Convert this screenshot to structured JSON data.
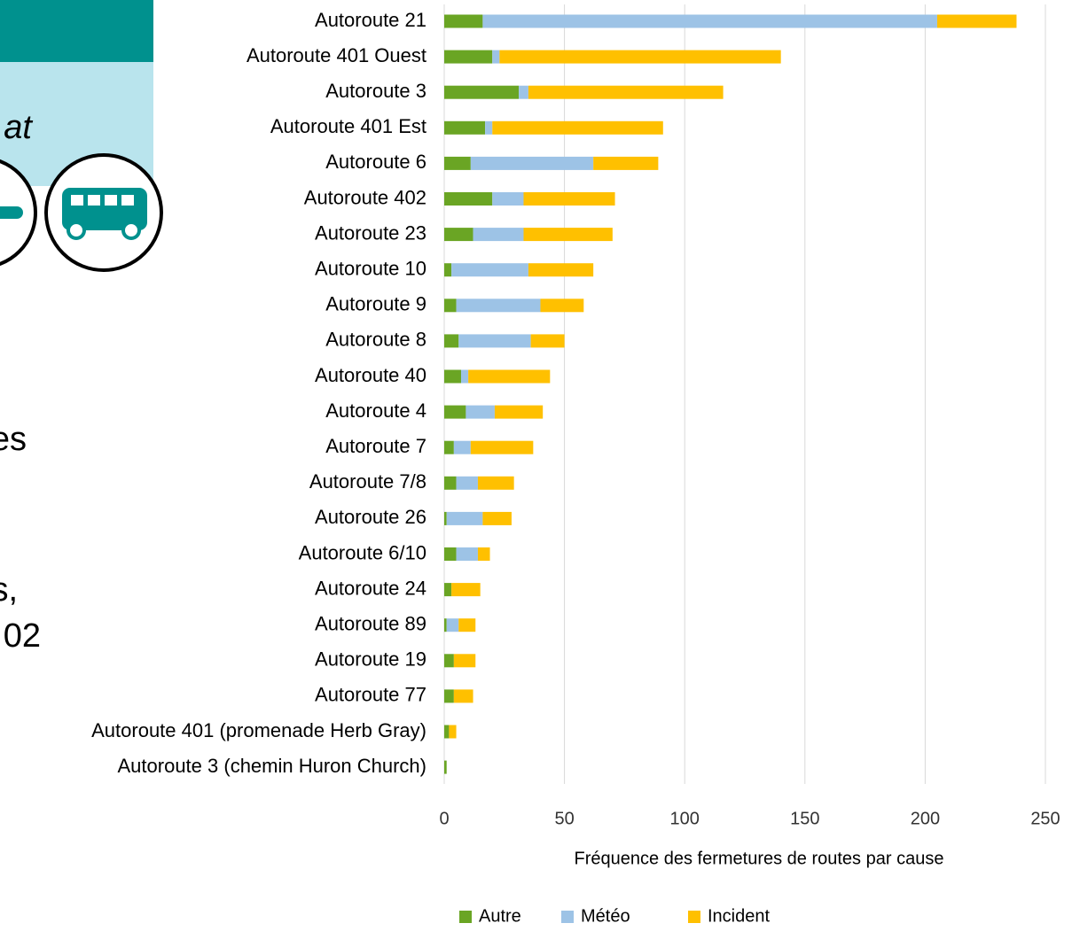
{
  "slide": {
    "fragments": [
      "at",
      "es",
      "s,",
      "02"
    ]
  },
  "chart_data": {
    "type": "stacked-barh",
    "xlabel": "Fréquence des fermetures de routes par cause",
    "categories": [
      "Autoroute 21",
      "Autoroute 401 Ouest",
      "Autoroute 3",
      "Autoroute 401 Est",
      "Autoroute 6",
      "Autoroute 402",
      "Autoroute 23",
      "Autoroute 10",
      "Autoroute 9",
      "Autoroute 8",
      "Autoroute 40",
      "Autoroute 4",
      "Autoroute 7",
      "Autoroute 7/8",
      "Autoroute 26",
      "Autoroute 6/10",
      "Autoroute 24",
      "Autoroute 89",
      "Autoroute 19",
      "Autoroute 77",
      "Autoroute 401 (promenade Herb Gray)",
      "Autoroute 3 (chemin Huron Church)"
    ],
    "series": [
      {
        "name": "Autre",
        "color": "#6aa524",
        "values": [
          16,
          20,
          31,
          17,
          11,
          20,
          12,
          3,
          5,
          6,
          7,
          9,
          4,
          5,
          1,
          5,
          3,
          1,
          4,
          4,
          2,
          1
        ]
      },
      {
        "name": "Météo",
        "color": "#9dc3e6",
        "values": [
          189,
          3,
          4,
          3,
          51,
          13,
          21,
          32,
          35,
          30,
          3,
          12,
          7,
          9,
          15,
          9,
          0,
          5,
          0,
          0,
          0,
          0
        ]
      },
      {
        "name": "Incident",
        "color": "#ffc000",
        "values": [
          33,
          117,
          81,
          71,
          27,
          38,
          37,
          27,
          18,
          14,
          34,
          20,
          26,
          15,
          12,
          5,
          12,
          7,
          9,
          8,
          3,
          0
        ]
      }
    ],
    "xlim": [
      0,
      250
    ],
    "xticks": [
      0,
      50,
      100,
      150,
      200,
      250
    ],
    "grid": true,
    "legend": "bottom"
  }
}
